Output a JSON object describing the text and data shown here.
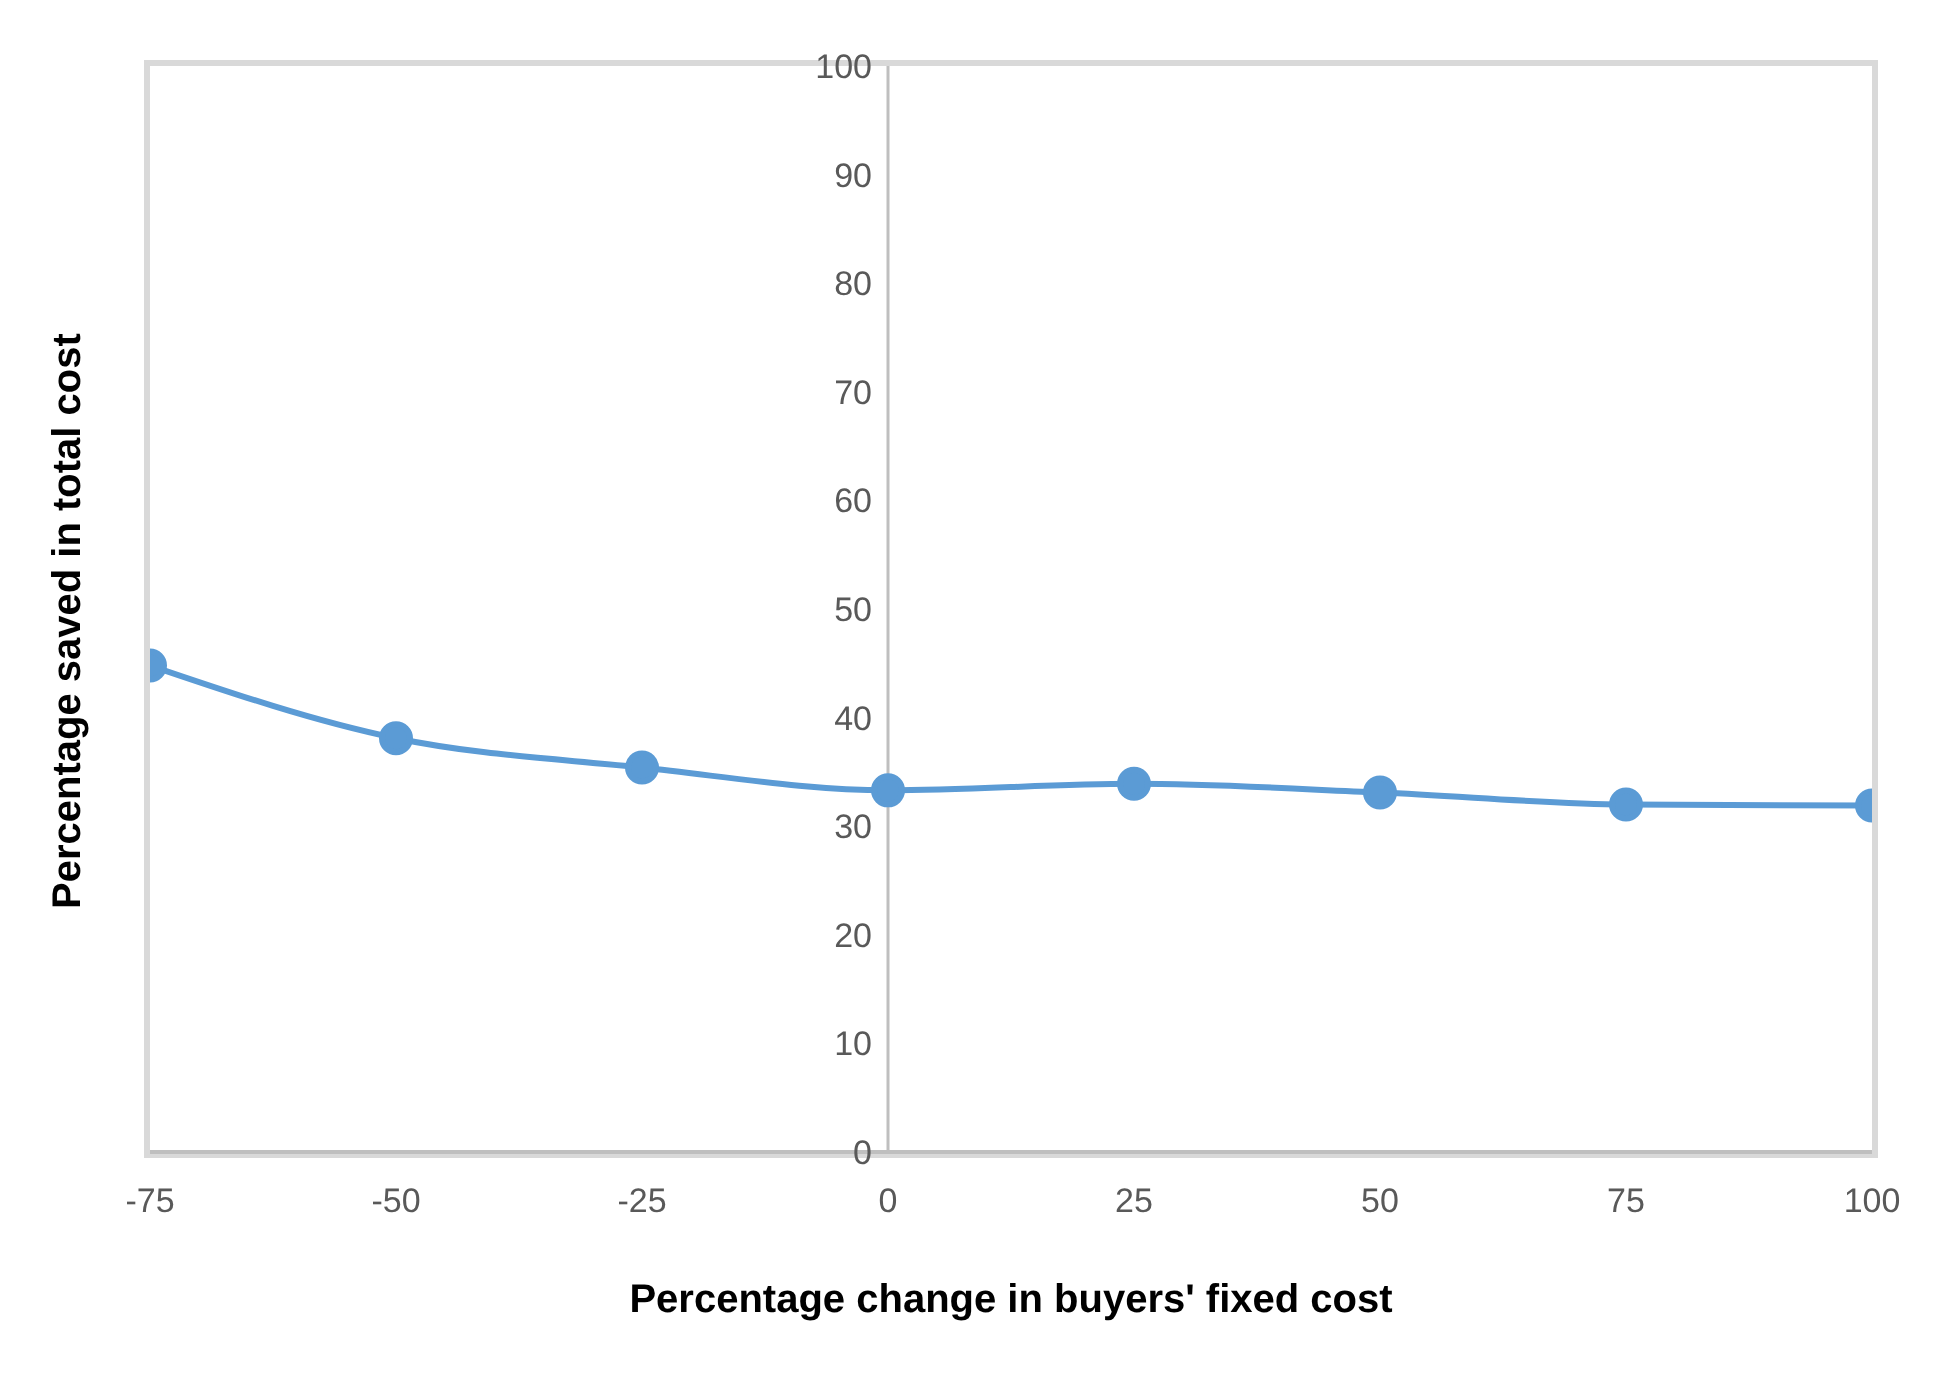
{
  "chart_data": {
    "type": "line",
    "xlabel": "Percentage change in buyers' fixed cost",
    "ylabel": "Percentage saved in total cost",
    "x": [
      -75,
      -50,
      -25,
      0,
      25,
      50,
      75,
      100
    ],
    "series": [
      {
        "color": "#5b9bd5",
        "values": [
          44.8,
          38.1,
          35.4,
          33.3,
          33.9,
          33.1,
          32.0,
          31.9
        ]
      }
    ],
    "xlim": [
      -75,
      100
    ],
    "xticks": [
      -75,
      -50,
      -25,
      0,
      25,
      50,
      75,
      100
    ],
    "ylim": [
      0,
      100
    ],
    "yticks": [
      0,
      10,
      20,
      30,
      40,
      50,
      60,
      70,
      80,
      90,
      100
    ],
    "grid": false,
    "legend": false,
    "marker": "circle",
    "line_style": "solid"
  }
}
